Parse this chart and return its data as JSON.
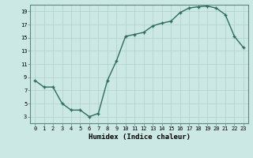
{
  "xlabel": "Humidex (Indice chaleur)",
  "x_values": [
    0,
    1,
    2,
    3,
    4,
    5,
    6,
    7,
    8,
    9,
    10,
    11,
    12,
    13,
    14,
    15,
    16,
    17,
    18,
    19,
    20,
    21,
    22,
    23
  ],
  "y_values": [
    8.5,
    7.5,
    7.5,
    5.0,
    4.0,
    4.0,
    3.0,
    3.5,
    8.5,
    11.5,
    15.2,
    15.5,
    15.8,
    16.8,
    17.2,
    17.5,
    18.8,
    19.5,
    19.7,
    19.8,
    19.5,
    18.5,
    15.2,
    13.5
  ],
  "line_color": "#2e6b5e",
  "marker_color": "#2e6b5e",
  "bg_color": "#cce8e4",
  "grid_color": "#aed0cc",
  "ylim": [
    2,
    20
  ],
  "yticks": [
    3,
    5,
    7,
    9,
    11,
    13,
    15,
    17,
    19
  ],
  "xlim": [
    -0.5,
    23.5
  ],
  "tick_fontsize": 5.0,
  "xlabel_fontsize": 6.5,
  "linewidth": 1.0,
  "markersize": 3.5,
  "markeredgewidth": 1.0
}
